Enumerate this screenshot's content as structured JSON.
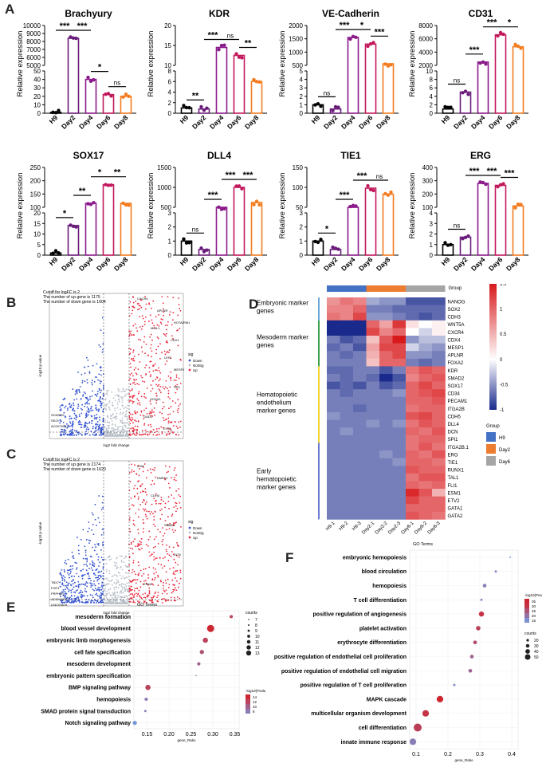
{
  "panels": {
    "A": "A",
    "B": "B",
    "C": "C",
    "D": "D",
    "E": "E",
    "F": "F"
  },
  "bar_ylabel": "Relative expression",
  "bar_xlabels": [
    "H9",
    "Day2",
    "Day4",
    "Day6",
    "Day8"
  ],
  "colors": {
    "H9": "#000000",
    "Day2": "#6a1b7a",
    "Day4": "#8a1a8a",
    "Day6": "#c2185b",
    "Day8": "#f47c20",
    "up": "#e8283c",
    "down": "#3050d0",
    "notsig": "#b9c0c9",
    "heat_high": "#d7191c",
    "heat_mid": "#ffffff",
    "heat_low": "#1a2a8c",
    "group_H9": "#4472c4",
    "group_Day2": "#ed7d31",
    "group_Day6": "#a5a5a5"
  },
  "chart_data": [
    {
      "type": "bar",
      "title": "Brachyury",
      "categories": [
        "H9",
        "Day2",
        "Day4",
        "Day6",
        "Day8"
      ],
      "values": [
        1,
        8400,
        40,
        22,
        20
      ],
      "axis_ticks_top": [
        "10000",
        "9000",
        "8000",
        "7000",
        "6000",
        "5000"
      ],
      "axis_ticks_bottom": [
        "50",
        "40",
        "30",
        "20",
        "10",
        "0"
      ],
      "sig": [
        {
          "label": "***",
          "from": 0,
          "to": 1
        },
        {
          "label": "***",
          "from": 1,
          "to": 2
        },
        {
          "label": "*",
          "from": 2,
          "to": 3
        },
        {
          "label": "ns",
          "from": 3,
          "to": 4
        }
      ]
    },
    {
      "type": "bar",
      "title": "KDR",
      "categories": [
        "H9",
        "Day2",
        "Day4",
        "Day6",
        "Day8"
      ],
      "values": [
        1,
        0.8,
        14.5,
        12.5,
        6
      ],
      "axis_ticks_top": [
        "20",
        "15",
        "10"
      ],
      "axis_ticks_bottom": [
        "8",
        "6",
        "4",
        "2",
        "0"
      ],
      "sig": [
        {
          "label": "**",
          "from": 0,
          "to": 1
        },
        {
          "label": "***",
          "from": 1,
          "to": 2
        },
        {
          "label": "ns",
          "from": 2,
          "to": 3
        },
        {
          "label": "**",
          "from": 3,
          "to": 4
        }
      ]
    },
    {
      "type": "bar",
      "title": "VE-Cadherin",
      "categories": [
        "H9",
        "Day2",
        "Day4",
        "Day6",
        "Day8"
      ],
      "values": [
        1,
        0.5,
        1550,
        1300,
        560
      ],
      "axis_ticks_top": [
        "2000",
        "1500",
        "1000",
        "500"
      ],
      "axis_ticks_bottom": [
        "5",
        "4",
        "3",
        "2",
        "1",
        "0"
      ],
      "sig": [
        {
          "label": "ns",
          "from": 0,
          "to": 1
        },
        {
          "label": "***",
          "from": 1,
          "to": 2
        },
        {
          "label": "*",
          "from": 2,
          "to": 3
        },
        {
          "label": "***",
          "from": 3,
          "to": 4
        }
      ]
    },
    {
      "type": "bar",
      "title": "CD31",
      "categories": [
        "H9",
        "Day2",
        "Day4",
        "Day6",
        "Day8"
      ],
      "values": [
        1,
        5,
        2500,
        6600,
        4800
      ],
      "axis_ticks_top": [
        "8000",
        "6000",
        "4000",
        "2000"
      ],
      "axis_ticks_bottom": [
        "10",
        "8",
        "6",
        "4",
        "2",
        "0"
      ],
      "sig": [
        {
          "label": "ns",
          "from": 0,
          "to": 1
        },
        {
          "label": "***",
          "from": 1,
          "to": 2
        },
        {
          "label": "***",
          "from": 2,
          "to": 3
        },
        {
          "label": "*",
          "from": 3,
          "to": 4
        }
      ]
    },
    {
      "type": "bar",
      "title": "SOX17",
      "categories": [
        "H9",
        "Day2",
        "Day4",
        "Day6",
        "Day8"
      ],
      "values": [
        1,
        14,
        115,
        185,
        115
      ],
      "axis_ticks_top": [
        "250",
        "200",
        "150",
        "100"
      ],
      "axis_ticks_bottom": [
        "20",
        "15",
        "10",
        "5",
        "0"
      ],
      "sig": [
        {
          "label": "*",
          "from": 0,
          "to": 1
        },
        {
          "label": "**",
          "from": 1,
          "to": 2
        },
        {
          "label": "*",
          "from": 2,
          "to": 3
        },
        {
          "label": "**",
          "from": 3,
          "to": 4
        }
      ]
    },
    {
      "type": "bar",
      "title": "DLL4",
      "categories": [
        "H9",
        "Day2",
        "Day4",
        "Day6",
        "Day8"
      ],
      "values": [
        1,
        0.4,
        230,
        1000,
        620
      ],
      "axis_ticks_top": [
        "1500",
        "1000",
        "500"
      ],
      "axis_ticks_bottom": [
        "3",
        "2",
        "1",
        "0"
      ],
      "sig": [
        {
          "label": "ns",
          "from": 0,
          "to": 1
        },
        {
          "label": "***",
          "from": 1,
          "to": 2
        },
        {
          "label": "***",
          "from": 2,
          "to": 3
        },
        {
          "label": "***",
          "from": 3,
          "to": 4
        }
      ]
    },
    {
      "type": "bar",
      "title": "TIE1",
      "categories": [
        "H9",
        "Day2",
        "Day4",
        "Day6",
        "Day8"
      ],
      "values": [
        1,
        0.4,
        30,
        98,
        83
      ],
      "axis_ticks_top": [
        "150",
        "100",
        "50"
      ],
      "axis_ticks_bottom": [
        "3",
        "2",
        "1",
        "0"
      ],
      "sig": [
        {
          "label": "*",
          "from": 0,
          "to": 1
        },
        {
          "label": "***",
          "from": 1,
          "to": 2
        },
        {
          "label": "***",
          "from": 2,
          "to": 3
        },
        {
          "label": "ns",
          "from": 3,
          "to": 4
        }
      ]
    },
    {
      "type": "bar",
      "title": "ERG",
      "categories": [
        "H9",
        "Day2",
        "Day4",
        "Day6",
        "Day8"
      ],
      "values": [
        1,
        1.7,
        280,
        265,
        110
      ],
      "axis_ticks_top": [
        "400",
        "300",
        "200",
        "100"
      ],
      "axis_ticks_bottom": [
        "4",
        "3",
        "2",
        "1",
        "0"
      ],
      "sig": [
        {
          "label": "ns",
          "from": 0,
          "to": 1
        },
        {
          "label": "***",
          "from": 1,
          "to": 2
        },
        {
          "label": "***",
          "from": 2,
          "to": 3
        },
        {
          "label": "***",
          "from": 3,
          "to": 4
        }
      ]
    }
  ],
  "volcano": [
    {
      "cutoff": "Cutoff for logFC is 2",
      "up_text": "The number of up gene is 1175",
      "down_text": "The number of down gene is 1604",
      "xlabel": "log2 fold change",
      "ylabel": "-log10 p-value",
      "legend_title": "sig",
      "legend": [
        "Down",
        "NotSig",
        "Up"
      ],
      "genes_up": [
        "CXCR4",
        "MIXL1",
        "LEF1",
        "SP5",
        "GAD1",
        "APLNR",
        "CDX1",
        "MESP1",
        "HOXA1",
        "EVX1",
        "HOTAIRM1"
      ],
      "genes_down": [
        "SCNN1G",
        "SE/2i",
        "AC007391.2"
      ]
    },
    {
      "cutoff": "Cutoff for logFC is 2",
      "up_text": "The number of up gene is 2174",
      "down_text": "The number of down gene is 1620",
      "xlabel": "log2 fold change",
      "ylabel": "-log10 p-value",
      "legend_title": "sig",
      "legend": [
        "Down",
        "NotSig",
        "Up"
      ],
      "genes_up": [
        "LUM",
        "CDH5",
        "SMAD1",
        "DCN",
        "ESM1",
        "EMR10"
      ],
      "genes_down": [
        "TBX7",
        "FGF4",
        "PRPH(E)",
        "AC004453.1",
        "LINC00678"
      ]
    }
  ],
  "heatmap": {
    "group_title": "Group",
    "groups": [
      "H9",
      "Day2",
      "Day6"
    ],
    "columns": [
      "H9-1",
      "H9-2",
      "H9-3",
      "Day2-1",
      "Day2-2",
      "Day2-3",
      "Day6-1",
      "Day6-2",
      "Day6-3"
    ],
    "row_groups": [
      {
        "label": "Embryonic marker genes",
        "rows": [
          "NANOG",
          "SOX2",
          "CDH3"
        ],
        "color": "#6ea8d8"
      },
      {
        "label": "Mesoderm marker genes",
        "rows": [
          "WNT5A",
          "CXCR4",
          "CDX4",
          "MESP1",
          "APLNR",
          "FOXA2"
        ],
        "color": "#3ca04a"
      },
      {
        "label": "Hematopoietic endothelium marker genes",
        "rows": [
          "KDR",
          "SMAD2",
          "SOX17",
          "CD34",
          "PECAM1",
          "ITGA2B",
          "CDH5",
          "DLL4",
          "DCN",
          "SPI1"
        ],
        "color": "#f2d130"
      },
      {
        "label": "Early hematopoietic marker genes",
        "rows": [
          "ITGA2B.1",
          "ERG",
          "TIE1",
          "RUNX1",
          "TAL1",
          "FLI1",
          "ESM1",
          "ETV2",
          "GATA1",
          "GATA2"
        ],
        "color": "#6a7bd0"
      }
    ],
    "values": [
      [
        0.7,
        0.9,
        0.8,
        -0.4,
        -0.5,
        -0.5,
        -0.8,
        -0.8,
        -0.8
      ],
      [
        0.8,
        0.8,
        1.0,
        -0.6,
        -0.6,
        -0.7,
        -0.7,
        -0.7,
        -0.7
      ],
      [
        0.9,
        0.8,
        1.2,
        -0.5,
        -0.5,
        -0.6,
        -0.7,
        -0.8,
        -0.7
      ],
      [
        -1.0,
        -1.0,
        -1.0,
        1.0,
        0.6,
        1.3,
        0.2,
        0.0,
        0.1
      ],
      [
        -1.0,
        -1.0,
        -1.0,
        1.2,
        0.8,
        1.0,
        0.0,
        -0.2,
        0.1
      ],
      [
        -0.6,
        -0.8,
        -0.7,
        0.4,
        1.1,
        1.5,
        -0.5,
        -0.3,
        -0.3
      ],
      [
        -0.7,
        -0.6,
        -0.8,
        0.6,
        1.2,
        1.2,
        -0.2,
        -0.4,
        -0.5
      ],
      [
        -0.6,
        -0.7,
        -0.6,
        0.5,
        1.0,
        1.2,
        -0.5,
        -0.5,
        -0.6
      ],
      [
        -0.6,
        -0.6,
        -0.6,
        0.4,
        1.0,
        1.0,
        -0.6,
        -0.7,
        -0.6
      ],
      [
        -0.7,
        -0.7,
        -0.6,
        -0.6,
        -0.8,
        -0.6,
        0.9,
        1.1,
        1.0
      ],
      [
        -0.6,
        -0.7,
        -0.6,
        -0.7,
        -1.0,
        -0.8,
        0.8,
        1.0,
        1.1
      ],
      [
        -0.8,
        -0.7,
        -0.8,
        -0.6,
        -0.8,
        -0.7,
        1.0,
        1.2,
        1.0
      ],
      [
        -0.6,
        -0.7,
        -0.6,
        -0.6,
        -0.6,
        -0.5,
        1.0,
        1.1,
        1.2
      ],
      [
        -0.6,
        -0.6,
        -0.6,
        -0.6,
        -0.6,
        -0.6,
        1.0,
        1.0,
        1.1
      ],
      [
        -0.6,
        -0.6,
        -0.7,
        -0.6,
        -0.6,
        -0.6,
        0.9,
        1.0,
        1.0
      ],
      [
        -0.5,
        -0.6,
        -0.6,
        -0.6,
        -0.6,
        -0.6,
        1.1,
        1.2,
        1.0
      ],
      [
        -0.6,
        -0.6,
        -0.6,
        -0.5,
        -0.6,
        -0.5,
        0.9,
        1.1,
        1.0
      ],
      [
        -0.6,
        -0.5,
        -0.6,
        -0.6,
        -0.6,
        -0.6,
        1.0,
        0.9,
        1.1
      ],
      [
        -0.6,
        -0.6,
        -0.6,
        -0.6,
        -0.6,
        -0.6,
        0.9,
        1.0,
        1.0
      ],
      [
        -0.6,
        -0.6,
        -0.6,
        -0.6,
        -0.6,
        -0.6,
        0.9,
        1.1,
        0.9
      ],
      [
        -0.6,
        -0.6,
        -0.6,
        -0.6,
        -0.5,
        -0.6,
        1.0,
        0.9,
        1.1
      ],
      [
        -0.6,
        -0.6,
        -0.6,
        -0.6,
        -0.6,
        -0.5,
        1.0,
        1.0,
        0.9
      ],
      [
        -0.6,
        -0.6,
        -0.6,
        -0.6,
        -0.6,
        -0.6,
        1.1,
        1.0,
        1.0
      ],
      [
        -0.6,
        -0.6,
        -0.6,
        -0.6,
        -0.6,
        -0.6,
        0.9,
        1.1,
        1.1
      ],
      [
        -0.6,
        -0.6,
        -0.6,
        -0.6,
        -0.6,
        -0.6,
        1.0,
        0.9,
        1.0
      ],
      [
        -0.6,
        -0.6,
        -0.6,
        -0.6,
        -0.6,
        -0.6,
        1.4,
        1.1,
        0.5
      ],
      [
        -0.6,
        -0.6,
        -0.6,
        -0.6,
        -0.6,
        -0.6,
        1.2,
        1.0,
        1.0
      ],
      [
        -0.6,
        -0.6,
        -0.6,
        -0.6,
        -0.6,
        -0.6,
        1.0,
        1.0,
        1.0
      ],
      [
        -0.6,
        -0.6,
        -0.6,
        -0.6,
        -0.6,
        -0.6,
        1.1,
        1.0,
        0.9
      ]
    ],
    "scale_ticks": [
      "1.5",
      "1",
      "0.5",
      "0",
      "-0.5",
      "-1"
    ]
  },
  "go_E": {
    "title": "GO Terms",
    "xlabel": "gene_Ratio",
    "x_ticks": [
      "0.15",
      "0.20",
      "0.25",
      "0.30",
      "0.35"
    ],
    "xlim": [
      0.12,
      0.36
    ],
    "terms": [
      {
        "name": "mesoderm formation",
        "ratio": 0.342,
        "count": 9,
        "p": 12
      },
      {
        "name": "blood vessel development",
        "ratio": 0.295,
        "count": 13,
        "p": 14
      },
      {
        "name": "embryonic limb morphogenesis",
        "ratio": 0.283,
        "count": 11,
        "p": 12
      },
      {
        "name": "cell fate specification",
        "ratio": 0.275,
        "count": 10,
        "p": 11
      },
      {
        "name": "mesoderm development",
        "ratio": 0.268,
        "count": 9,
        "p": 10
      },
      {
        "name": "embryonic pattern specification",
        "ratio": 0.262,
        "count": 7,
        "p": 9
      },
      {
        "name": "BMP signaling pathway",
        "ratio": 0.152,
        "count": 11,
        "p": 12
      },
      {
        "name": "hemopoiesis",
        "ratio": 0.148,
        "count": 9,
        "p": 8
      },
      {
        "name": "SMAD protein signal transduction",
        "ratio": 0.146,
        "count": 8,
        "p": 8
      },
      {
        "name": "Notch signaling pathway",
        "ratio": 0.122,
        "count": 10,
        "p": 6
      }
    ],
    "legend_count_title": "counts",
    "legend_count_values": [
      "7",
      "8",
      "9",
      "10",
      "11",
      "12",
      "13"
    ],
    "legend_p_title": "-log10(Pvalue)",
    "legend_p_values": [
      "14",
      "12",
      "10",
      "8"
    ]
  },
  "go_F": {
    "title": "GO Terms",
    "xlabel": "gene_Ratio",
    "x_ticks": [
      "0.1",
      "0.2",
      "0.3",
      "0.4"
    ],
    "xlim": [
      0.08,
      0.42
    ],
    "terms": [
      {
        "name": "embryonic hemopoiesis",
        "ratio": 0.395,
        "count": 5,
        "p": 14
      },
      {
        "name": "blood circulation",
        "ratio": 0.35,
        "count": 10,
        "p": 16
      },
      {
        "name": "hemopoiesis",
        "ratio": 0.315,
        "count": 20,
        "p": 18
      },
      {
        "name": "T cell differentiation",
        "ratio": 0.305,
        "count": 10,
        "p": 16
      },
      {
        "name": "positive regulation of angiogenesis",
        "ratio": 0.305,
        "count": 30,
        "p": 30
      },
      {
        "name": "platelet activation",
        "ratio": 0.295,
        "count": 25,
        "p": 28
      },
      {
        "name": "erythrocyte differentiation",
        "ratio": 0.285,
        "count": 20,
        "p": 26
      },
      {
        "name": "positive regulation of endothelial cell proliferation",
        "ratio": 0.275,
        "count": 20,
        "p": 22
      },
      {
        "name": "positive regulation of endothelial cell migration",
        "ratio": 0.27,
        "count": 20,
        "p": 22
      },
      {
        "name": "positive regulation of T cell proliferation",
        "ratio": 0.22,
        "count": 10,
        "p": 16
      },
      {
        "name": "MAPK cascade",
        "ratio": 0.175,
        "count": 40,
        "p": 32
      },
      {
        "name": "multicellular organism development",
        "ratio": 0.13,
        "count": 40,
        "p": 30
      },
      {
        "name": "cell differentiation",
        "ratio": 0.105,
        "count": 50,
        "p": 28
      },
      {
        "name": "innate immune response",
        "ratio": 0.09,
        "count": 40,
        "p": 18
      }
    ],
    "legend_p_title": "-log10(Pvalue)",
    "legend_p_values": [
      "35",
      "30",
      "25",
      "20",
      "15"
    ],
    "legend_count_title": "counts",
    "legend_count_values": [
      "20",
      "30",
      "40",
      "50"
    ]
  }
}
